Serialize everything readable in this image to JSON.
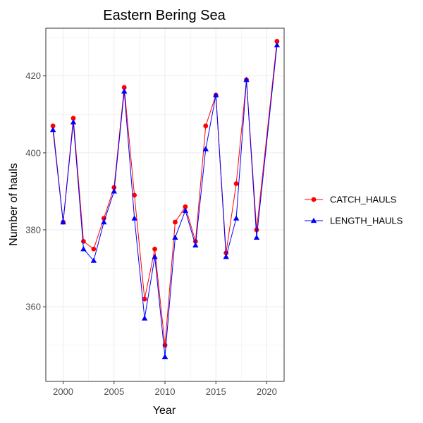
{
  "chart_data": {
    "type": "line",
    "title": "Eastern Bering Sea",
    "xlabel": "Year",
    "ylabel": "Number of hauls",
    "xlim": [
      1998.3,
      2021.7
    ],
    "ylim": [
      340.6,
      432.4
    ],
    "xticks": [
      2000,
      2005,
      2010,
      2015,
      2020
    ],
    "yticks": [
      360,
      380,
      400,
      420
    ],
    "grid": true,
    "legend_position": "right",
    "x": [
      1999,
      2000,
      2001,
      2002,
      2003,
      2004,
      2005,
      2006,
      2007,
      2008,
      2009,
      2010,
      2011,
      2012,
      2013,
      2014,
      2015,
      2016,
      2017,
      2018,
      2019,
      2021
    ],
    "series": [
      {
        "name": "CATCH_HAULS",
        "color": "#ff0000",
        "marker": "circle",
        "values": [
          407,
          382,
          409,
          377,
          375,
          383,
          391,
          417,
          389,
          362,
          375,
          350,
          382,
          386,
          377,
          407,
          415,
          374,
          392,
          419,
          380,
          429
        ]
      },
      {
        "name": "LENGTH_HAULS",
        "color": "#0000ff",
        "marker": "triangle",
        "values": [
          406,
          382,
          408,
          375,
          372,
          382,
          390,
          416,
          383,
          357,
          373,
          347,
          378,
          385,
          376,
          401,
          415,
          373,
          383,
          419,
          378,
          428
        ]
      }
    ]
  }
}
